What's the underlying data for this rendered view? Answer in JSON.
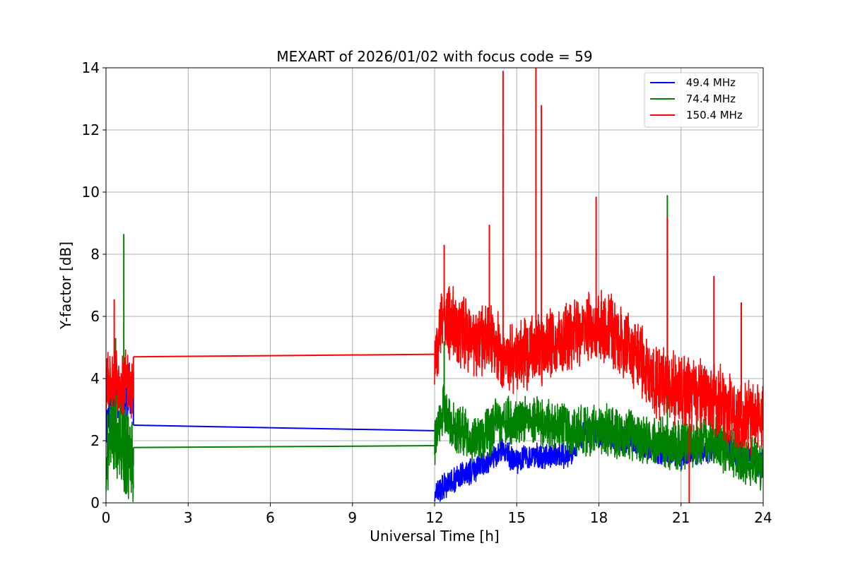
{
  "chart_data": {
    "type": "line",
    "title": "MEXART of 2026/01/02 with focus code = 59",
    "xlabel": "Universal Time [h]",
    "ylabel": "Y-factor [dB]",
    "xlim": [
      0,
      24
    ],
    "ylim": [
      0,
      14
    ],
    "xticks": [
      0,
      3,
      6,
      9,
      12,
      15,
      18,
      21,
      24
    ],
    "yticks": [
      0,
      2,
      4,
      6,
      8,
      10,
      12,
      14
    ],
    "grid": true,
    "legend_position": "top-right",
    "series": [
      {
        "name": " 49.4 MHz",
        "color": "#0000ff",
        "segments": [
          {
            "start": 0.0,
            "end": 1.0,
            "shape": [
              [
                0.0,
                2.5
              ],
              [
                0.2,
                3.4
              ],
              [
                0.4,
                3.6
              ],
              [
                0.6,
                3.3
              ],
              [
                0.8,
                3.6
              ],
              [
                1.0,
                3.4
              ]
            ],
            "noise": 0.7,
            "clip_min": 0.2,
            "seed": 11
          },
          {
            "start": 12.0,
            "end": 24.0,
            "shape": [
              [
                12.0,
                0.3
              ],
              [
                12.5,
                0.6
              ],
              [
                13.0,
                0.9
              ],
              [
                13.5,
                1.1
              ],
              [
                14.0,
                1.4
              ],
              [
                14.5,
                1.7
              ],
              [
                15.0,
                1.3
              ],
              [
                15.5,
                1.5
              ],
              [
                16.0,
                1.5
              ],
              [
                16.5,
                1.5
              ],
              [
                17.0,
                1.6
              ],
              [
                17.5,
                2.3
              ],
              [
                18.0,
                2.2
              ],
              [
                19.0,
                2.0
              ],
              [
                20.0,
                1.7
              ],
              [
                21.0,
                1.5
              ],
              [
                22.0,
                1.7
              ],
              [
                22.5,
                2.0
              ],
              [
                23.0,
                1.6
              ],
              [
                24.0,
                1.2
              ]
            ],
            "noise": 0.35,
            "clip_min": 0.05,
            "seed": 12
          }
        ],
        "gap_line": [
          [
            1.0,
            2.5
          ],
          [
            12.0,
            2.32
          ]
        ],
        "spikes": [
          [
            1.0,
            4.2
          ]
        ]
      },
      {
        "name": " 74.4 MHz",
        "color": "#008000",
        "segments": [
          {
            "start": 0.0,
            "end": 1.0,
            "shape": [
              [
                0.0,
                1.3
              ],
              [
                0.2,
                2.5
              ],
              [
                0.4,
                2.2
              ],
              [
                0.6,
                2.0
              ],
              [
                0.8,
                1.6
              ],
              [
                1.0,
                1.2
              ]
            ],
            "noise": 1.3,
            "clip_min": 0.0,
            "seed": 21
          },
          {
            "start": 12.0,
            "end": 24.0,
            "shape": [
              [
                12.0,
                2.0
              ],
              [
                12.3,
                3.0
              ],
              [
                12.8,
                2.4
              ],
              [
                13.5,
                2.0
              ],
              [
                14.0,
                2.3
              ],
              [
                14.5,
                2.7
              ],
              [
                15.0,
                2.6
              ],
              [
                15.5,
                2.7
              ],
              [
                16.0,
                2.6
              ],
              [
                17.0,
                2.3
              ],
              [
                18.0,
                2.4
              ],
              [
                19.0,
                2.2
              ],
              [
                20.0,
                2.0
              ],
              [
                21.0,
                1.8
              ],
              [
                22.0,
                2.1
              ],
              [
                23.0,
                1.5
              ],
              [
                24.0,
                1.2
              ]
            ],
            "noise": 0.7,
            "clip_min": 0.3,
            "seed": 22
          }
        ],
        "gap_line": [
          [
            1.0,
            1.78
          ],
          [
            12.0,
            1.84
          ]
        ],
        "spikes": [
          [
            0.35,
            5.3
          ],
          [
            0.65,
            8.65
          ],
          [
            12.35,
            5.2
          ],
          [
            20.5,
            9.9
          ]
        ]
      },
      {
        "name": "150.4 MHz",
        "color": "#ff0000",
        "segments": [
          {
            "start": 0.0,
            "end": 1.0,
            "shape": [
              [
                0.0,
                3.7
              ],
              [
                0.2,
                3.9
              ],
              [
                0.4,
                4.0
              ],
              [
                0.6,
                3.7
              ],
              [
                0.8,
                3.9
              ],
              [
                1.0,
                3.6
              ]
            ],
            "noise": 0.9,
            "clip_min": 2.3,
            "seed": 31
          },
          {
            "start": 12.0,
            "end": 24.0,
            "shape": [
              [
                12.0,
                4.5
              ],
              [
                12.3,
                6.0
              ],
              [
                12.6,
                5.8
              ],
              [
                13.0,
                5.4
              ],
              [
                13.5,
                5.2
              ],
              [
                14.0,
                5.3
              ],
              [
                14.5,
                4.7
              ],
              [
                15.0,
                4.6
              ],
              [
                15.5,
                4.9
              ],
              [
                16.0,
                5.0
              ],
              [
                16.5,
                5.0
              ],
              [
                17.0,
                5.4
              ],
              [
                17.5,
                5.5
              ],
              [
                18.0,
                5.6
              ],
              [
                18.5,
                5.5
              ],
              [
                19.0,
                5.0
              ],
              [
                19.5,
                4.6
              ],
              [
                20.0,
                3.9
              ],
              [
                21.0,
                3.6
              ],
              [
                22.0,
                3.5
              ],
              [
                23.0,
                2.8
              ],
              [
                24.0,
                2.8
              ]
            ],
            "noise": 1.0,
            "clip_min": 1.5,
            "seed": 32
          }
        ],
        "gap_line": [
          [
            1.0,
            4.7
          ],
          [
            12.0,
            4.78
          ]
        ],
        "spikes": [
          [
            0.3,
            6.55
          ],
          [
            12.35,
            8.3
          ],
          [
            14.0,
            8.95
          ],
          [
            14.5,
            13.9
          ],
          [
            15.7,
            14.0
          ],
          [
            15.9,
            12.8
          ],
          [
            17.9,
            9.85
          ],
          [
            20.5,
            9.2
          ],
          [
            22.2,
            7.3
          ],
          [
            23.2,
            6.45
          ]
        ],
        "dips": [
          [
            21.3,
            0.0
          ]
        ]
      }
    ]
  }
}
